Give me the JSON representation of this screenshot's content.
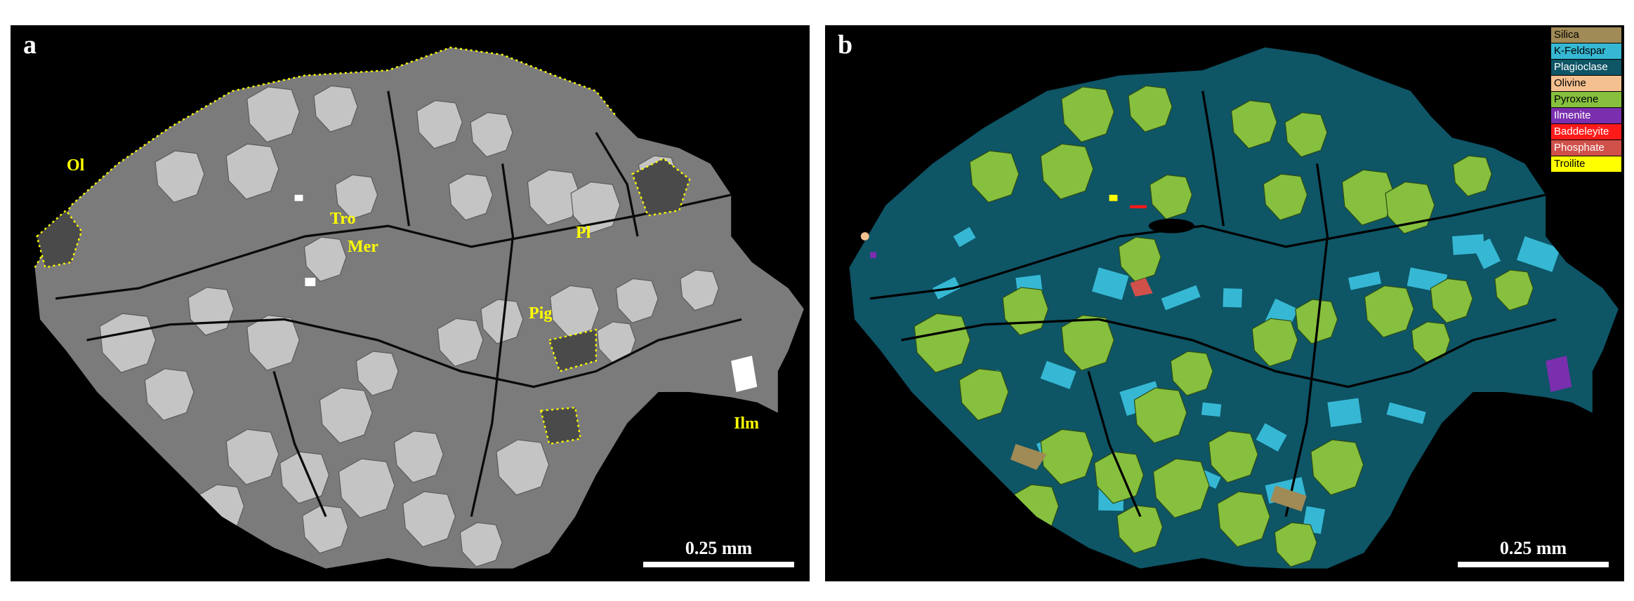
{
  "panel_a": {
    "letter": "a",
    "scale_label": "0.25 mm",
    "labels": {
      "ol": "Ol",
      "tro": "Tro",
      "mer": "Mer",
      "pl": "Pl",
      "pig": "Pig",
      "ilm": "Ilm"
    }
  },
  "panel_b": {
    "letter": "b",
    "scale_label": "0.25 mm",
    "legend": [
      {
        "label": "Silica",
        "color": "#a08a55"
      },
      {
        "label": "K-Feldspar",
        "color": "#36b8d4"
      },
      {
        "label": "Plagioclase",
        "color": "#0e5566"
      },
      {
        "label": "Olivine",
        "color": "#f5c08f"
      },
      {
        "label": "Pyroxene",
        "color": "#86c03e"
      },
      {
        "label": "Ilmenite",
        "color": "#7a2fae"
      },
      {
        "label": "Baddeleyite",
        "color": "#ff1a1a"
      },
      {
        "label": "Phosphate",
        "color": "#d0504a"
      },
      {
        "label": "Troilite",
        "color": "#ffff00"
      }
    ]
  },
  "colors": {
    "background": "#000000",
    "bse_matrix": "#7b7b7b",
    "bse_grain": "#c4c4c4",
    "annotation": "#ffff00"
  }
}
